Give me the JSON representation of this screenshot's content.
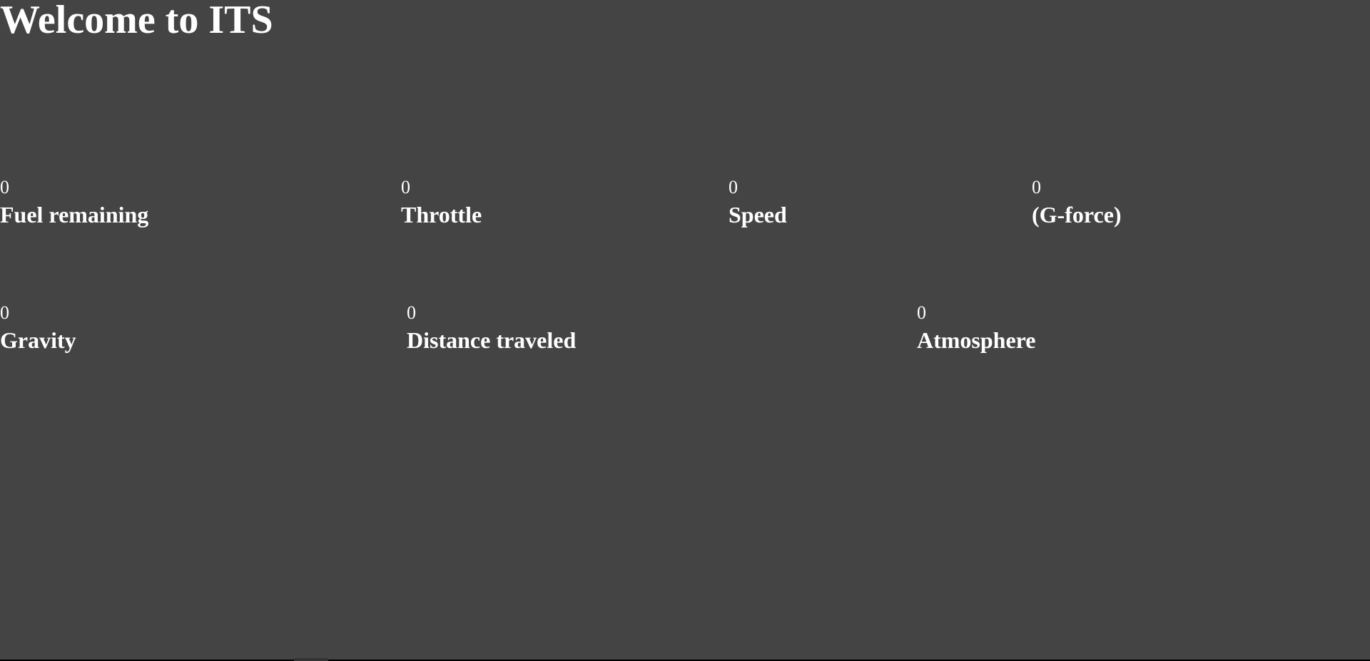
{
  "page": {
    "title": "Welcome to ITS",
    "background_color": "#444444",
    "text_color": "#ffffff"
  },
  "telemetry": {
    "row1": [
      {
        "key": "fuel",
        "value": "0",
        "label": "Fuel remaining"
      },
      {
        "key": "throttle",
        "value": "0",
        "label": "Throttle"
      },
      {
        "key": "speed",
        "value": "0",
        "label": "Speed"
      },
      {
        "key": "gforce",
        "value": "0",
        "label": "(G-force)"
      }
    ],
    "row2": [
      {
        "key": "gravity",
        "value": "0",
        "label": "Gravity"
      },
      {
        "key": "distance",
        "value": "0",
        "label": "Distance traveled"
      },
      {
        "key": "atmosphere",
        "value": "0",
        "label": "Atmosphere"
      }
    ]
  }
}
